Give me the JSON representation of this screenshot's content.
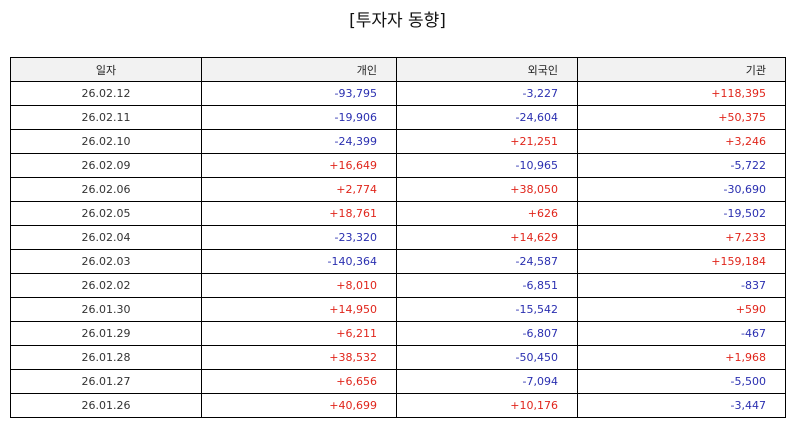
{
  "title": "[투자자 동향]",
  "colors": {
    "positive": "#e0251b",
    "negative": "#2a2fb0"
  },
  "table": {
    "headers": [
      "일자",
      "개인",
      "외국인",
      "기관"
    ],
    "rows": [
      [
        "26.02.12",
        "-93,795",
        "-3,227",
        "+118,395"
      ],
      [
        "26.02.11",
        "-19,906",
        "-24,604",
        "+50,375"
      ],
      [
        "26.02.10",
        "-24,399",
        "+21,251",
        "+3,246"
      ],
      [
        "26.02.09",
        "+16,649",
        "-10,965",
        "-5,722"
      ],
      [
        "26.02.06",
        "+2,774",
        "+38,050",
        "-30,690"
      ],
      [
        "26.02.05",
        "+18,761",
        "+626",
        "-19,502"
      ],
      [
        "26.02.04",
        "-23,320",
        "+14,629",
        "+7,233"
      ],
      [
        "26.02.03",
        "-140,364",
        "-24,587",
        "+159,184"
      ],
      [
        "26.02.02",
        "+8,010",
        "-6,851",
        "-837"
      ],
      [
        "26.01.30",
        "+14,950",
        "-15,542",
        "+590"
      ],
      [
        "26.01.29",
        "+6,211",
        "-6,807",
        "-467"
      ],
      [
        "26.01.28",
        "+38,532",
        "-50,450",
        "+1,968"
      ],
      [
        "26.01.27",
        "+6,656",
        "-7,094",
        "-5,500"
      ],
      [
        "26.01.26",
        "+40,699",
        "+10,176",
        "-3,447"
      ]
    ]
  }
}
